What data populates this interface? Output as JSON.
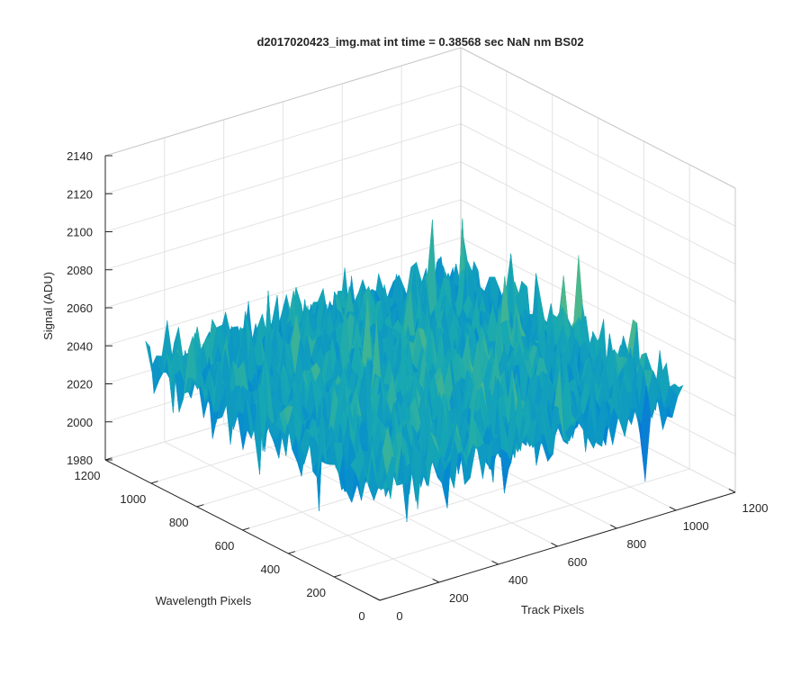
{
  "chart_data": {
    "type": "surface",
    "title": "d2017020423_img.mat int time = 0.38568 sec  NaN nm BS02",
    "xlabel": "Track Pixels",
    "ylabel": "Wavelength Pixels",
    "zlabel": "Signal (ADU)",
    "xlim": [
      0,
      1200
    ],
    "ylim": [
      0,
      1200
    ],
    "zlim": [
      1980,
      2140
    ],
    "xticks": [
      "0",
      "200",
      "400",
      "600",
      "800",
      "1000",
      "1200"
    ],
    "yticks": [
      "0",
      "200",
      "400",
      "600",
      "800",
      "1000",
      "1200"
    ],
    "zticks": [
      "1980",
      "2000",
      "2020",
      "2040",
      "2060",
      "2080",
      "2100",
      "2120",
      "2140"
    ],
    "x_range": [
      0,
      1024
    ],
    "y_range": [
      0,
      1024
    ],
    "z_mean": 2040,
    "z_range_approx": [
      1995,
      2122
    ],
    "colormap": "parula",
    "grid": true,
    "box": true
  }
}
